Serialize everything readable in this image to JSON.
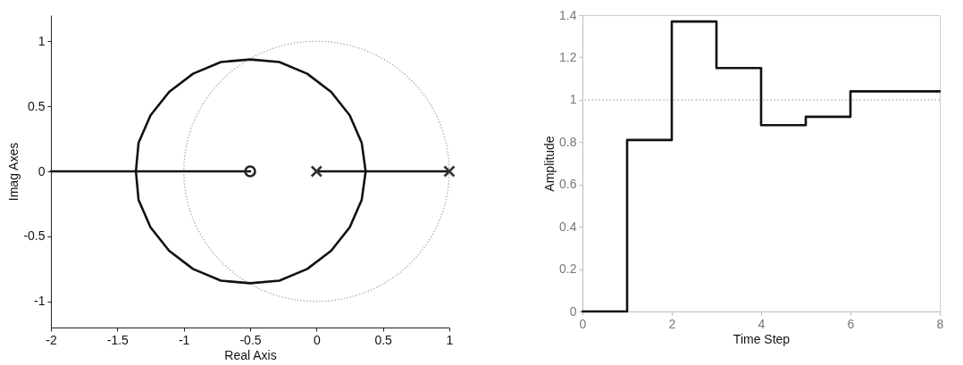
{
  "chart_data": [
    {
      "type": "line",
      "xlabel": "Real Axis",
      "ylabel": "Imag Axes",
      "xlim": [
        -2,
        1
      ],
      "ylim": [
        -1.2,
        1.2
      ],
      "xticks": [
        -2,
        -1.5,
        -1,
        -0.5,
        0,
        0.5,
        1
      ],
      "yticks": [
        -1,
        -0.5,
        0,
        0.5,
        1
      ],
      "series": [
        {
          "type": "line",
          "color": "#111111",
          "x": [
            0,
            0.37,
            0.34,
            0.25,
            0.11,
            -0.07,
            -0.28,
            -0.5,
            -0.72,
            -0.93,
            -1.11,
            -1.25,
            -1.34,
            -1.36,
            -0.5
          ],
          "values": [
            0,
            0,
            0.22,
            0.43,
            0.61,
            0.75,
            0.84,
            0.86,
            0.84,
            0.75,
            0.61,
            0.43,
            0.22,
            0,
            0
          ]
        },
        {
          "type": "line",
          "color": "#111111",
          "x": [
            1,
            0.37,
            0.34,
            0.25,
            0.11,
            -0.07,
            -0.28,
            -0.5,
            -0.72,
            -0.93,
            -1.11,
            -1.25,
            -1.34,
            -1.36,
            -2
          ],
          "values": [
            0,
            0,
            -0.22,
            -0.43,
            -0.61,
            -0.75,
            -0.84,
            -0.86,
            -0.84,
            -0.75,
            -0.61,
            -0.43,
            -0.22,
            0,
            0
          ]
        },
        {
          "type": "scatter",
          "marker": "cross",
          "color": "#333333",
          "x": [
            0,
            1
          ],
          "values": [
            0,
            0
          ]
        },
        {
          "type": "scatter",
          "marker": "circle",
          "color": "#222222",
          "x": [
            -0.5
          ],
          "values": [
            0
          ]
        }
      ]
    },
    {
      "type": "step",
      "xlabel": "Time Step",
      "ylabel": "Amplitude",
      "xlim": [
        0,
        8
      ],
      "ylim": [
        0,
        1.4
      ],
      "xticks": [
        0,
        2,
        4,
        6,
        8
      ],
      "yticks": [
        0,
        0.2,
        0.4,
        0.6,
        0.8,
        1,
        1.2,
        1.4
      ],
      "x": [
        0,
        1,
        2,
        3,
        4,
        5,
        6,
        7,
        8
      ],
      "series": [
        {
          "color": "#111111",
          "values": [
            0,
            0.81,
            1.37,
            1.15,
            0.88,
            0.92,
            1.04,
            1.04,
            1.04
          ]
        }
      ],
      "ref_lines": [
        {
          "axis": "y",
          "value": 1,
          "color": "#aaaaaa",
          "line_style": "dotted"
        }
      ]
    }
  ]
}
